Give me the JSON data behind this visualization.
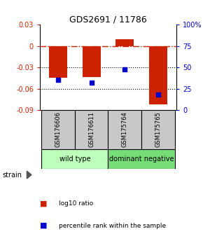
{
  "title": "GDS2691 / 11786",
  "samples": [
    "GSM176606",
    "GSM176611",
    "GSM175764",
    "GSM175765"
  ],
  "log10_ratios": [
    -0.045,
    -0.044,
    0.01,
    -0.082
  ],
  "percentile_ranks": [
    35,
    32,
    48,
    18
  ],
  "bar_color": "#cc2200",
  "dot_color": "#0000cc",
  "left_ylim": [
    -0.09,
    0.03
  ],
  "right_ylim": [
    0,
    100
  ],
  "left_yticks": [
    -0.09,
    -0.06,
    -0.03,
    0.0,
    0.03
  ],
  "right_yticks": [
    0,
    25,
    50,
    75,
    100
  ],
  "left_yticklabels": [
    "-0.09",
    "-0.06",
    "-0.03",
    "0",
    "0.03"
  ],
  "right_yticklabels": [
    "0",
    "25",
    "50",
    "75",
    "100%"
  ],
  "dotted_lines": [
    -0.03,
    -0.06
  ],
  "zero_line_color": "#cc2200",
  "groups": [
    {
      "label": "wild type",
      "samples": [
        0,
        1
      ],
      "color": "#bbffbb"
    },
    {
      "label": "dominant negative",
      "samples": [
        2,
        3
      ],
      "color": "#77dd77"
    }
  ],
  "strain_label": "strain",
  "legend_items": [
    {
      "color": "#cc2200",
      "label": "log10 ratio"
    },
    {
      "color": "#0000cc",
      "label": "percentile rank within the sample"
    }
  ],
  "bar_width": 0.55,
  "sample_box_color": "#c8c8c8",
  "bg_color": "#ffffff"
}
